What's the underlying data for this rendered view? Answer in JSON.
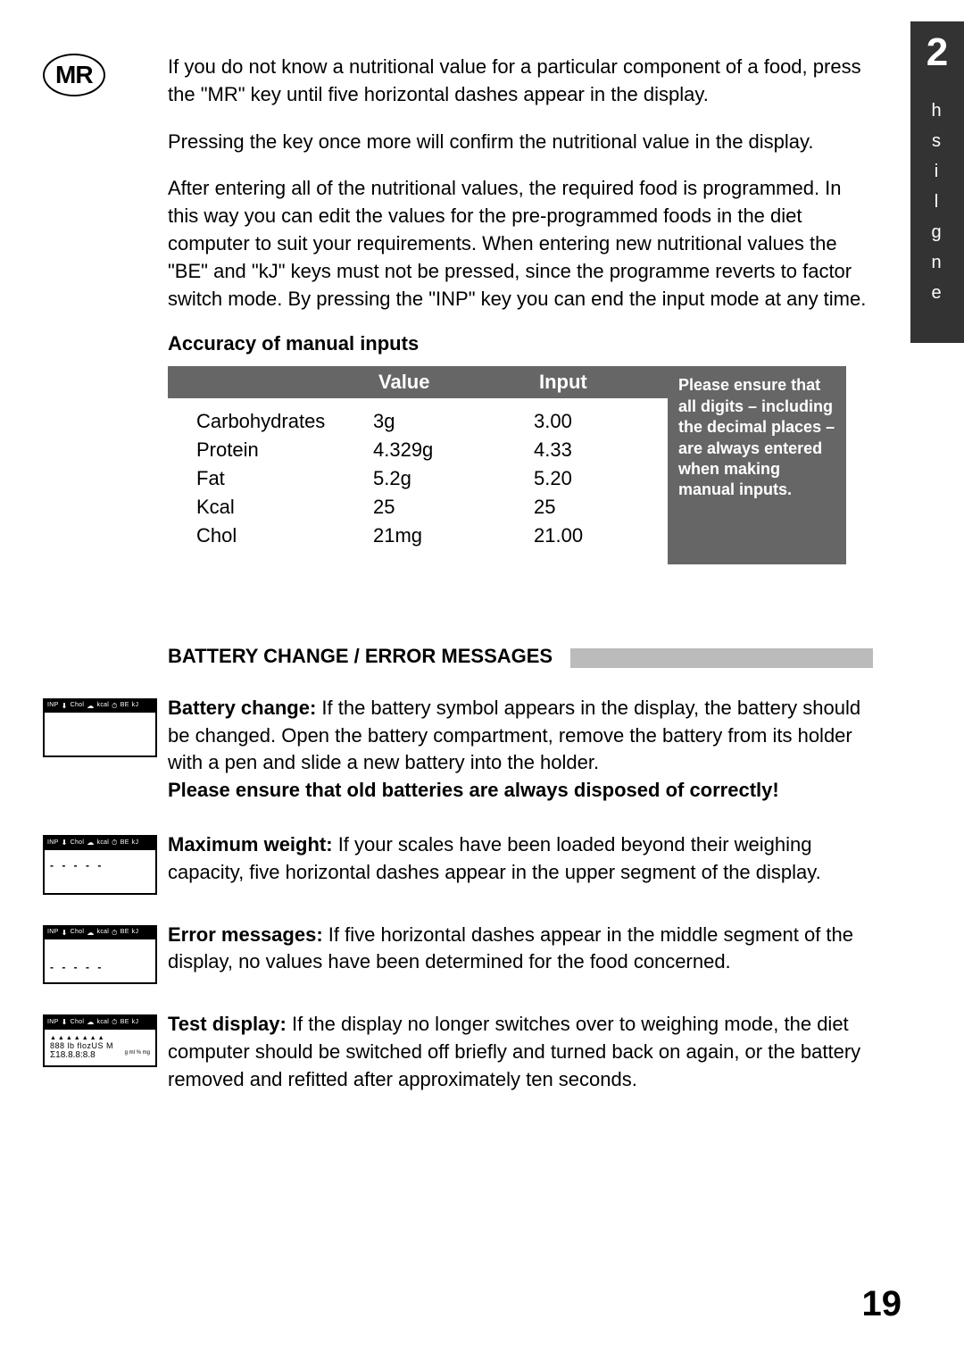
{
  "tab": {
    "number": "2",
    "language_letters": [
      "e",
      "n",
      "g",
      "l",
      "i",
      "s",
      "h"
    ]
  },
  "mr_label": "MR",
  "intro": {
    "p1": "If you do not know a nutritional value for a particular component of a food, press the \"MR\" key until five horizontal dashes appear in the display.",
    "p2": "Pressing the key once more will confirm the nutritional value in the display.",
    "p3": "After entering all of the nutritional values, the required food is programmed. In this way you can edit the values for the pre-programmed foods in the diet computer to suit your requirements. When entering new nutritional values the \"BE\" and \"kJ\" keys must not be pressed, since the programme reverts to factor switch mode. By pressing the \"INP\" key you can end the input mode at any time."
  },
  "accuracy": {
    "title": "Accuracy of manual inputs",
    "headers": {
      "value": "Value",
      "input": "Input"
    },
    "rows": [
      {
        "name": "Carbohydrates",
        "value": "3g",
        "input": "3.00"
      },
      {
        "name": "Protein",
        "value": "4.329g",
        "input": "4.33"
      },
      {
        "name": "Fat",
        "value": "5.2g",
        "input": "5.20"
      },
      {
        "name": "Kcal",
        "value": "25",
        "input": "25"
      },
      {
        "name": "Chol",
        "value": "21mg",
        "input": "21.00"
      }
    ],
    "side_note": "Please ensure that all digits – including the decimal places – are always entered when making manual inputs."
  },
  "battery_section": {
    "heading": "BATTERY CHANGE / ERROR MESSAGES",
    "lcd_top_labels": [
      "INP",
      "⬇",
      "Chol",
      "☁",
      "kcal",
      "⏱",
      "BE",
      "kJ"
    ],
    "battery": {
      "lead": "Battery change:",
      "text": " If the battery symbol appears in the display, the battery should be changed. Open the battery compartment, remove the battery from its holder with a pen and slide a new battery into the holder.",
      "disposal": "Please ensure that old batteries are always disposed of correctly!"
    },
    "maxweight": {
      "lead": "Maximum weight:",
      "text": " If your scales have been loaded beyond their weighing capacity, five horizontal dashes appear in the upper segment of the display.",
      "lcd_line": "- - - - -"
    },
    "errormsg": {
      "lead": "Error messages:",
      "text": " If five horizontal dashes appear in the middle segment of the display, no values have been determined for the food concerned.",
      "lcd_line": "- - - - -"
    },
    "testdisp": {
      "lead": "Test display:",
      "text": " If the display no longer switches over to weighing mode, the diet computer should be switched off briefly and turned back on again, or the battery removed and refitted after approximately ten seconds.",
      "lcd_line1": "▲▲▲▲▲▲▲",
      "lcd_line2_left": "888   lb flozUS M",
      "lcd_line3_left": "Σ18.8.8:8.8",
      "lcd_line3_right": "g ml % mg"
    }
  },
  "page_number": "19"
}
